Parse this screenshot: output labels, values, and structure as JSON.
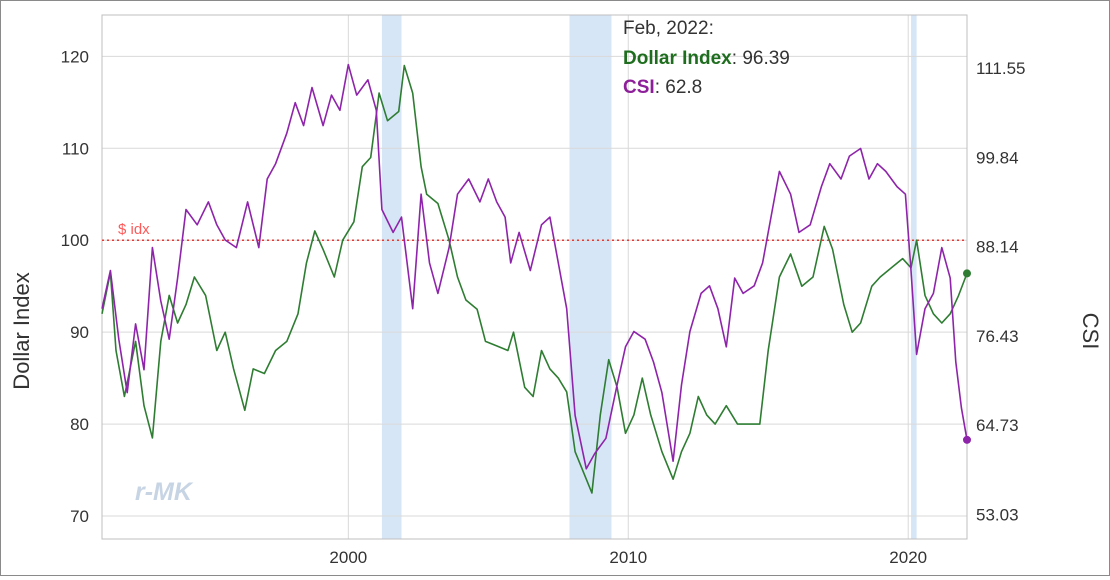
{
  "chart_data": {
    "type": "line",
    "x_range": [
      1991.2,
      2022.1
    ],
    "x_ticks": [
      2000,
      2010,
      2020
    ],
    "x_tick_labels": [
      "2000",
      "2010",
      "2020"
    ],
    "y_left": {
      "label": "Dollar Index",
      "range": [
        67.5,
        124.5
      ],
      "ticks": [
        70,
        80,
        90,
        100,
        110,
        120
      ],
      "tick_labels": [
        "70",
        "80",
        "90",
        "100",
        "110",
        "120"
      ]
    },
    "y_right": {
      "label": "CSI",
      "range": [
        49.8,
        118.5
      ],
      "ticks": [
        53.03,
        64.73,
        76.43,
        88.14,
        99.84,
        111.55
      ],
      "tick_labels": [
        "53.03",
        "64.73",
        "76.43",
        "88.14",
        "99.84",
        "111.55"
      ]
    },
    "grid": true,
    "recessions": [
      [
        2001.2,
        2001.9
      ],
      [
        2007.9,
        2009.4
      ],
      [
        2020.1,
        2020.3
      ]
    ],
    "reference_line": {
      "value": 100,
      "label": "$ idx",
      "color": "#e53935"
    },
    "tooltip": {
      "date": "Feb, 2022:",
      "entries": [
        {
          "name": "Dollar Index",
          "value": "96.39",
          "color": "#1f6e1f"
        },
        {
          "name": "CSI",
          "value": "62.8",
          "color": "#8e1f9a"
        }
      ]
    },
    "watermark": "r-MK",
    "series": [
      {
        "name": "Dollar Index",
        "axis": "left",
        "color": "#2e7d32",
        "points": [
          [
            1991.2,
            92
          ],
          [
            1991.5,
            96.5
          ],
          [
            1991.7,
            88
          ],
          [
            1992.0,
            83
          ],
          [
            1992.4,
            89
          ],
          [
            1992.7,
            82
          ],
          [
            1993.0,
            78.5
          ],
          [
            1993.3,
            89
          ],
          [
            1993.6,
            94
          ],
          [
            1993.9,
            91
          ],
          [
            1994.2,
            93
          ],
          [
            1994.5,
            96
          ],
          [
            1994.9,
            94
          ],
          [
            1995.3,
            88
          ],
          [
            1995.6,
            90
          ],
          [
            1995.9,
            86
          ],
          [
            1996.3,
            81.5
          ],
          [
            1996.6,
            86
          ],
          [
            1997.0,
            85.5
          ],
          [
            1997.4,
            88
          ],
          [
            1997.8,
            89
          ],
          [
            1998.2,
            92
          ],
          [
            1998.5,
            97.5
          ],
          [
            1998.8,
            101
          ],
          [
            1999.1,
            99
          ],
          [
            1999.5,
            96
          ],
          [
            1999.8,
            100
          ],
          [
            2000.2,
            102
          ],
          [
            2000.5,
            108
          ],
          [
            2000.8,
            109
          ],
          [
            2001.1,
            116
          ],
          [
            2001.4,
            113
          ],
          [
            2001.8,
            114
          ],
          [
            2002.0,
            119
          ],
          [
            2002.3,
            116
          ],
          [
            2002.6,
            108
          ],
          [
            2002.8,
            105
          ],
          [
            2003.2,
            104
          ],
          [
            2003.6,
            100
          ],
          [
            2003.9,
            96
          ],
          [
            2004.2,
            93.5
          ],
          [
            2004.6,
            92.5
          ],
          [
            2004.9,
            89
          ],
          [
            2005.3,
            88.5
          ],
          [
            2005.7,
            88
          ],
          [
            2005.9,
            90
          ],
          [
            2006.3,
            84
          ],
          [
            2006.6,
            83
          ],
          [
            2006.9,
            88
          ],
          [
            2007.2,
            86
          ],
          [
            2007.5,
            85
          ],
          [
            2007.8,
            83.5
          ],
          [
            2008.1,
            77
          ],
          [
            2008.5,
            74
          ],
          [
            2008.7,
            72.5
          ],
          [
            2009.0,
            81
          ],
          [
            2009.3,
            87
          ],
          [
            2009.6,
            84
          ],
          [
            2009.9,
            79
          ],
          [
            2010.2,
            81
          ],
          [
            2010.5,
            85
          ],
          [
            2010.8,
            81
          ],
          [
            2011.2,
            77
          ],
          [
            2011.6,
            74
          ],
          [
            2011.9,
            77
          ],
          [
            2012.2,
            79
          ],
          [
            2012.5,
            83
          ],
          [
            2012.8,
            81
          ],
          [
            2013.1,
            80
          ],
          [
            2013.5,
            82
          ],
          [
            2013.9,
            80
          ],
          [
            2014.3,
            80
          ],
          [
            2014.7,
            80
          ],
          [
            2015.0,
            88
          ],
          [
            2015.4,
            96
          ],
          [
            2015.8,
            98.5
          ],
          [
            2016.2,
            95
          ],
          [
            2016.6,
            96
          ],
          [
            2017.0,
            101.5
          ],
          [
            2017.3,
            99
          ],
          [
            2017.7,
            93
          ],
          [
            2018.0,
            90
          ],
          [
            2018.3,
            91
          ],
          [
            2018.7,
            95
          ],
          [
            2019.0,
            96
          ],
          [
            2019.4,
            97
          ],
          [
            2019.8,
            98
          ],
          [
            2020.1,
            97
          ],
          [
            2020.3,
            100
          ],
          [
            2020.6,
            94
          ],
          [
            2020.9,
            92
          ],
          [
            2021.2,
            91
          ],
          [
            2021.5,
            92
          ],
          [
            2021.8,
            94
          ],
          [
            2022.1,
            96.39
          ]
        ]
      },
      {
        "name": "CSI",
        "axis": "right",
        "color": "#8e24aa",
        "points": [
          [
            1991.2,
            80
          ],
          [
            1991.5,
            85
          ],
          [
            1991.8,
            76
          ],
          [
            1992.1,
            69
          ],
          [
            1992.4,
            78
          ],
          [
            1992.7,
            72
          ],
          [
            1993.0,
            88
          ],
          [
            1993.3,
            81
          ],
          [
            1993.6,
            76
          ],
          [
            1993.9,
            84
          ],
          [
            1994.2,
            93
          ],
          [
            1994.6,
            91
          ],
          [
            1995.0,
            94
          ],
          [
            1995.3,
            91
          ],
          [
            1995.6,
            89
          ],
          [
            1996.0,
            88
          ],
          [
            1996.4,
            94
          ],
          [
            1996.8,
            88
          ],
          [
            1997.1,
            97
          ],
          [
            1997.4,
            99
          ],
          [
            1997.8,
            103
          ],
          [
            1998.1,
            107
          ],
          [
            1998.4,
            104
          ],
          [
            1998.7,
            109
          ],
          [
            1999.1,
            104
          ],
          [
            1999.4,
            108
          ],
          [
            1999.7,
            106
          ],
          [
            2000.0,
            112
          ],
          [
            2000.3,
            108
          ],
          [
            2000.7,
            110
          ],
          [
            2001.0,
            106
          ],
          [
            2001.2,
            93
          ],
          [
            2001.6,
            90
          ],
          [
            2001.9,
            92
          ],
          [
            2002.3,
            80
          ],
          [
            2002.6,
            95
          ],
          [
            2002.9,
            86
          ],
          [
            2003.2,
            82
          ],
          [
            2003.6,
            88
          ],
          [
            2003.9,
            95
          ],
          [
            2004.3,
            97
          ],
          [
            2004.7,
            94
          ],
          [
            2005.0,
            97
          ],
          [
            2005.3,
            94
          ],
          [
            2005.6,
            92
          ],
          [
            2005.8,
            86
          ],
          [
            2006.1,
            90
          ],
          [
            2006.5,
            85
          ],
          [
            2006.9,
            91
          ],
          [
            2007.2,
            92
          ],
          [
            2007.5,
            86
          ],
          [
            2007.8,
            80
          ],
          [
            2008.1,
            66
          ],
          [
            2008.5,
            59
          ],
          [
            2008.8,
            61
          ],
          [
            2009.2,
            63
          ],
          [
            2009.6,
            70
          ],
          [
            2009.9,
            75
          ],
          [
            2010.2,
            77
          ],
          [
            2010.6,
            76
          ],
          [
            2010.9,
            73
          ],
          [
            2011.2,
            69
          ],
          [
            2011.6,
            60
          ],
          [
            2011.9,
            70
          ],
          [
            2012.2,
            77
          ],
          [
            2012.6,
            82
          ],
          [
            2012.9,
            83
          ],
          [
            2013.2,
            80
          ],
          [
            2013.5,
            75
          ],
          [
            2013.8,
            84
          ],
          [
            2014.1,
            82
          ],
          [
            2014.5,
            83
          ],
          [
            2014.8,
            86
          ],
          [
            2015.1,
            92
          ],
          [
            2015.4,
            98
          ],
          [
            2015.8,
            95
          ],
          [
            2016.1,
            90
          ],
          [
            2016.5,
            91
          ],
          [
            2016.9,
            96
          ],
          [
            2017.2,
            99
          ],
          [
            2017.6,
            97
          ],
          [
            2017.9,
            100
          ],
          [
            2018.3,
            101
          ],
          [
            2018.6,
            97
          ],
          [
            2018.9,
            99
          ],
          [
            2019.2,
            98
          ],
          [
            2019.6,
            96
          ],
          [
            2019.9,
            95
          ],
          [
            2020.1,
            85
          ],
          [
            2020.3,
            74
          ],
          [
            2020.6,
            80
          ],
          [
            2020.9,
            82
          ],
          [
            2021.2,
            88
          ],
          [
            2021.5,
            84
          ],
          [
            2021.7,
            73
          ],
          [
            2021.9,
            67
          ],
          [
            2022.1,
            62.8
          ]
        ]
      }
    ]
  }
}
